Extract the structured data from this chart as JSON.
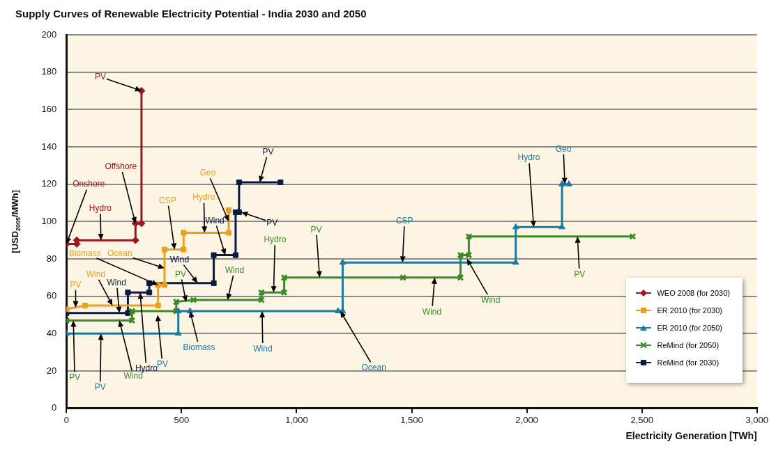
{
  "chart_data": {
    "type": "line",
    "title": "Supply Curves of Renewable Electricity Potential - India 2030 and 2050",
    "xlabel": "Electricity Generation [TWh]",
    "ylabel": "[USD$_{2005}$/MWh]",
    "xlim": [
      0,
      3000
    ],
    "xticks": [
      0,
      500,
      {
        "value": 1000,
        "label": "1,000"
      },
      {
        "value": 1500,
        "label": "1,500"
      },
      {
        "value": 2000,
        "label": "2,000"
      },
      {
        "value": 2500,
        "label": "2,500"
      },
      {
        "value": 3000,
        "label": "3,000"
      }
    ],
    "ylim": [
      0,
      200
    ],
    "yticks": [
      0,
      20,
      40,
      60,
      80,
      100,
      120,
      140,
      160,
      180,
      200
    ],
    "grid": "y",
    "legend": "bottom right",
    "line_style": "solid",
    "series": [
      {
        "name": "WEO 2008 (for 2030)",
        "color": "#a0141e",
        "marker": "diamond",
        "x": [
          0,
          45,
          45,
          300,
          300,
          326,
          326
        ],
        "values": [
          88,
          88,
          90,
          90,
          99,
          99,
          170
        ]
      },
      {
        "name": "ER 2010 (for 2030)",
        "color": "#e8a020",
        "marker": "square",
        "x": [
          0,
          81,
          398,
          398,
          426,
          426,
          509,
          509,
          705,
          705
        ],
        "values": [
          53,
          55,
          55,
          66,
          66,
          85,
          85,
          94,
          94,
          106
        ]
      },
      {
        "name": "ER 2010 (for 2050)",
        "color": "#1a7aa0",
        "marker": "triangle",
        "x": [
          0,
          486,
          486,
          537,
          1180,
          1200,
          1200,
          1952,
          1952,
          2153,
          2153,
          2183
        ],
        "values": [
          40,
          40,
          52,
          52,
          52,
          52,
          78,
          78,
          97,
          97,
          120,
          120
        ]
      },
      {
        "name": "ReMind (for 2050)",
        "color": "#3a8a2a",
        "marker": "cross",
        "x": [
          0,
          285,
          285,
          477,
          477,
          552,
          847,
          847,
          946,
          946,
          1462,
          1712,
          1712,
          1748,
          1748,
          2460
        ],
        "values": [
          47,
          47,
          52,
          52,
          57,
          58,
          58,
          62,
          62,
          70,
          70,
          70,
          82,
          82,
          92,
          92
        ]
      },
      {
        "name": "ReMind (for 2030)",
        "color": "#0a1a40",
        "marker": "square",
        "x": [
          0,
          267,
          267,
          360,
          360,
          640,
          640,
          735,
          735,
          750,
          750,
          930
        ],
        "values": [
          51,
          51,
          62,
          62,
          67,
          67,
          82,
          82,
          105,
          105,
          121,
          121
        ]
      }
    ],
    "annotations": [
      {
        "text": "PV",
        "x": 326,
        "y": 170
      },
      {
        "text": "Offshore",
        "x": 300,
        "y": 99
      },
      {
        "text": "Onshore",
        "x": 0,
        "y": 88
      },
      {
        "text": "Hydro",
        "x": 150,
        "y": 90
      },
      {
        "text": "PV",
        "x": 40,
        "y": 54
      },
      {
        "text": "Wind",
        "x": 200,
        "y": 55
      },
      {
        "text": "Biomass",
        "x": 398,
        "y": 66
      },
      {
        "text": "Ocean",
        "x": 426,
        "y": 75
      },
      {
        "text": "CSP",
        "x": 470,
        "y": 85
      },
      {
        "text": "Hydro",
        "x": 600,
        "y": 94
      },
      {
        "text": "Geo",
        "x": 705,
        "y": 100
      },
      {
        "text": "PV",
        "x": 150,
        "y": 40
      },
      {
        "text": "Biomass",
        "x": 537,
        "y": 52
      },
      {
        "text": "PV",
        "x": 396,
        "y": 50
      },
      {
        "text": "Wind",
        "x": 850,
        "y": 52
      },
      {
        "text": "Ocean",
        "x": 1190,
        "y": 52
      },
      {
        "text": "CSP",
        "x": 1460,
        "y": 78
      },
      {
        "text": "Hydro",
        "x": 2030,
        "y": 97
      },
      {
        "text": "Geo",
        "x": 2165,
        "y": 120
      },
      {
        "text": "PV",
        "x": 30,
        "y": 47
      },
      {
        "text": "Wind",
        "x": 230,
        "y": 47
      },
      {
        "text": "PV",
        "x": 520,
        "y": 57
      },
      {
        "text": "Wind",
        "x": 700,
        "y": 58
      },
      {
        "text": "Hydro",
        "x": 900,
        "y": 62
      },
      {
        "text": "PV",
        "x": 1100,
        "y": 70
      },
      {
        "text": "Wind",
        "x": 1600,
        "y": 70
      },
      {
        "text": "Wind",
        "x": 1740,
        "y": 80
      },
      {
        "text": "PV",
        "x": 2220,
        "y": 92
      },
      {
        "text": "Wind",
        "x": 230,
        "y": 51
      },
      {
        "text": "Hydro",
        "x": 320,
        "y": 62
      },
      {
        "text": "Wind",
        "x": 570,
        "y": 67
      },
      {
        "text": "Wind",
        "x": 690,
        "y": 82
      },
      {
        "text": "PV",
        "x": 760,
        "y": 105
      },
      {
        "text": "PV",
        "x": 840,
        "y": 121
      }
    ]
  }
}
